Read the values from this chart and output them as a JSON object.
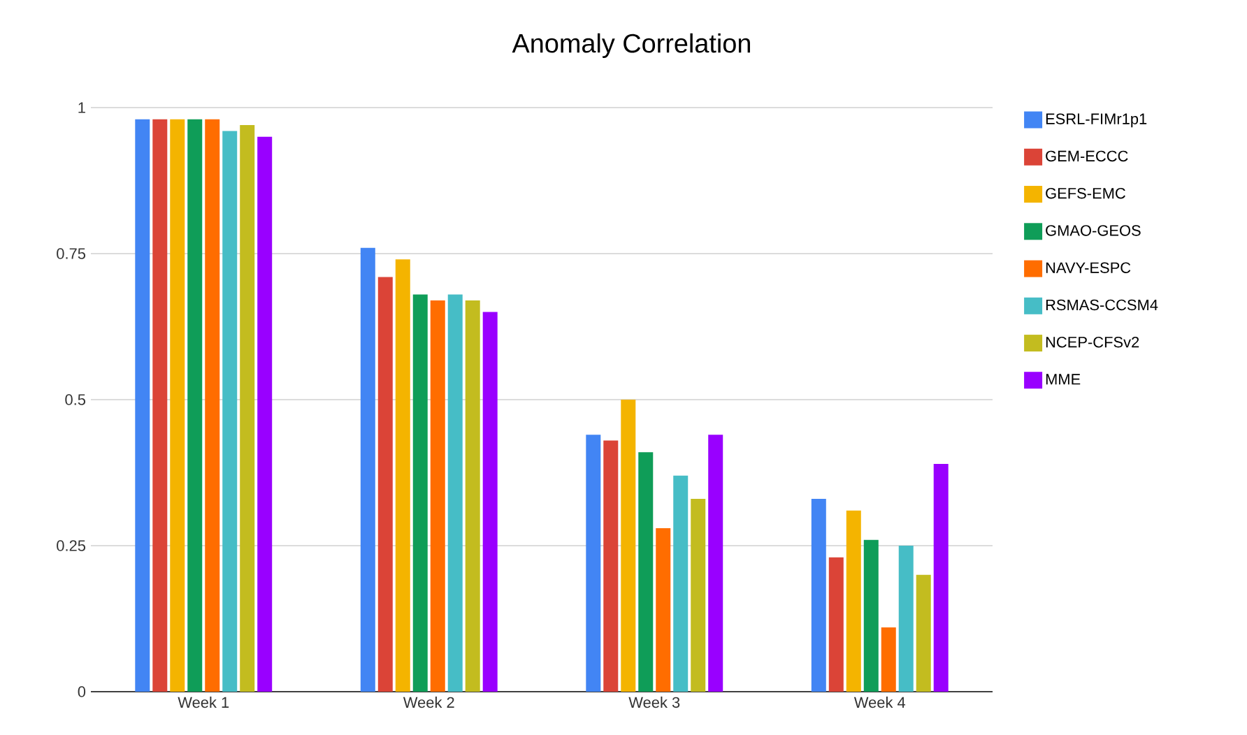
{
  "chart_data": {
    "type": "bar",
    "title": "Anomaly Correlation",
    "categories": [
      "Week 1",
      "Week 2",
      "Week 3",
      "Week 4"
    ],
    "series": [
      {
        "name": "ESRL-FIMr1p1",
        "color": "#4285f4",
        "values": [
          0.98,
          0.76,
          0.44,
          0.33
        ]
      },
      {
        "name": "GEM-ECCC",
        "color": "#db4437",
        "values": [
          0.98,
          0.71,
          0.43,
          0.23
        ]
      },
      {
        "name": "GEFS-EMC",
        "color": "#f4b400",
        "values": [
          0.98,
          0.74,
          0.5,
          0.31
        ]
      },
      {
        "name": "GMAO-GEOS",
        "color": "#0f9d58",
        "values": [
          0.98,
          0.68,
          0.41,
          0.26
        ]
      },
      {
        "name": "NAVY-ESPC",
        "color": "#ff6d00",
        "values": [
          0.98,
          0.67,
          0.28,
          0.11
        ]
      },
      {
        "name": "RSMAS-CCSM4",
        "color": "#46bdc6",
        "values": [
          0.96,
          0.68,
          0.37,
          0.25
        ]
      },
      {
        "name": "NCEP-CFSv2",
        "color": "#c3bc1f",
        "values": [
          0.97,
          0.67,
          0.33,
          0.2
        ]
      },
      {
        "name": "MME",
        "color": "#9900ff",
        "values": [
          0.95,
          0.65,
          0.44,
          0.39
        ]
      }
    ],
    "ylim": [
      0,
      1
    ],
    "yticks": [
      0,
      0.25,
      0.5,
      0.75,
      1
    ],
    "grid": "y",
    "legend": "right"
  }
}
